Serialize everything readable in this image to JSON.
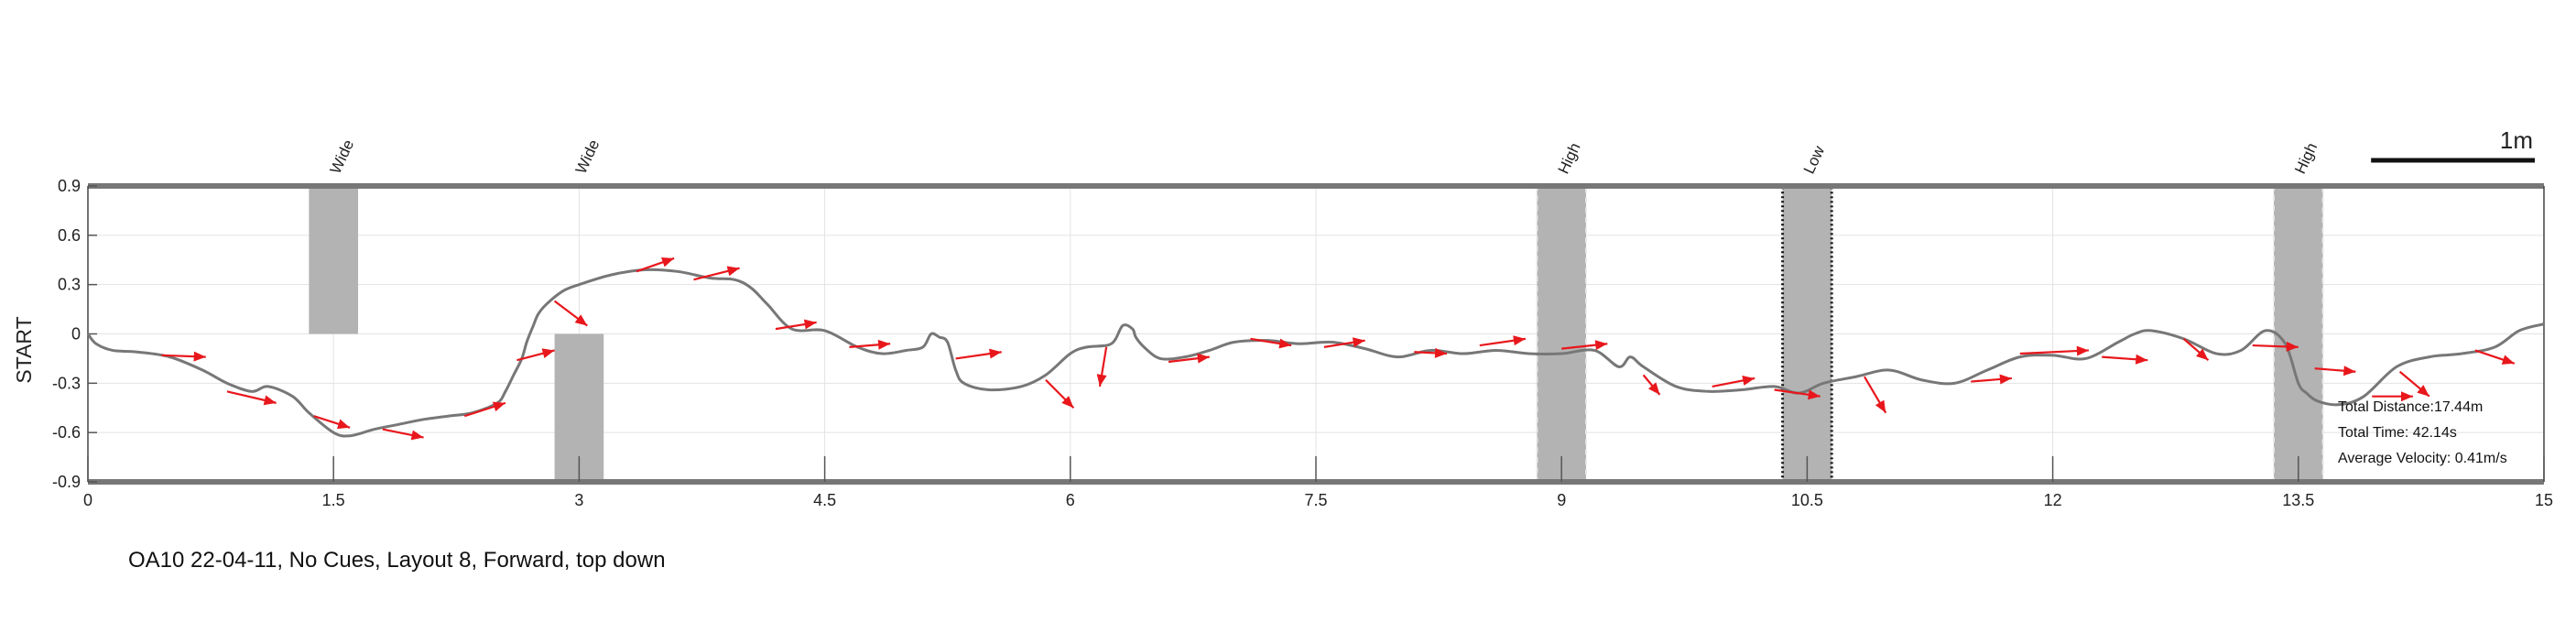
{
  "caption": "OA10 22-04-11, No Cues, Layout 8, Forward, top down",
  "chart_data": {
    "type": "line",
    "ylabel": "START",
    "xlim": [
      0,
      15
    ],
    "ylim": [
      -0.9,
      0.9
    ],
    "xticks": [
      0,
      1.5,
      3,
      4.5,
      6,
      7.5,
      9,
      10.5,
      12,
      13.5,
      15
    ],
    "xtick_labels": [
      "0",
      "1.5",
      "3",
      "4.5",
      "6",
      "7.5",
      "9",
      "10.5",
      "12",
      "13.5",
      "15"
    ],
    "yticks": [
      0.9,
      0.6,
      0.3,
      0,
      -0.3,
      -0.6,
      -0.9
    ],
    "ytick_labels": [
      "0.9",
      "0.6",
      "0.3",
      "0",
      "-0.3",
      "-0.6",
      "-0.9"
    ],
    "grid": true,
    "scale_bar": {
      "label": "1m",
      "length": 1
    },
    "obstacles": [
      {
        "label": "Wide",
        "x": [
          1.35,
          1.65
        ],
        "y": [
          0,
          0.9
        ],
        "style": "solid"
      },
      {
        "label": "Wide",
        "x": [
          2.85,
          3.15
        ],
        "y": [
          -0.9,
          0
        ],
        "style": "solid"
      },
      {
        "label": "High",
        "x": [
          8.85,
          9.15
        ],
        "y": [
          -0.9,
          0.9
        ],
        "style": "dashed"
      },
      {
        "label": "Low",
        "x": [
          10.35,
          10.65
        ],
        "y": [
          -0.9,
          0.9
        ],
        "style": "dotted"
      },
      {
        "label": "High",
        "x": [
          13.35,
          13.65
        ],
        "y": [
          -0.9,
          0.9
        ],
        "style": "dashed"
      }
    ],
    "path": {
      "x": [
        0,
        0.05,
        0.15,
        0.3,
        0.5,
        0.7,
        0.85,
        1.0,
        1.1,
        1.25,
        1.35,
        1.5,
        1.6,
        1.75,
        1.9,
        2.05,
        2.2,
        2.35,
        2.5,
        2.55,
        2.6,
        2.65,
        2.68,
        2.72,
        2.75,
        2.8,
        2.9,
        3.0,
        3.2,
        3.4,
        3.6,
        3.8,
        3.95,
        4.05,
        4.15,
        4.3,
        4.5,
        4.7,
        4.85,
        5.0,
        5.1,
        5.15,
        5.2,
        5.25,
        5.3,
        5.35,
        5.5,
        5.7,
        5.85,
        6.0,
        6.1,
        6.25,
        6.32,
        6.38,
        6.4,
        6.45,
        6.55,
        6.7,
        6.85,
        7.0,
        7.2,
        7.4,
        7.6,
        7.8,
        8.0,
        8.2,
        8.4,
        8.6,
        8.8,
        9.0,
        9.2,
        9.35,
        9.42,
        9.5,
        9.7,
        9.9,
        10.1,
        10.3,
        10.45,
        10.6,
        10.8,
        11.0,
        11.2,
        11.4,
        11.6,
        11.8,
        12.0,
        12.2,
        12.4,
        12.5,
        12.6,
        12.8,
        13.0,
        13.15,
        13.3,
        13.42,
        13.5,
        13.55,
        13.62,
        13.75,
        13.9,
        14.1,
        14.3,
        14.5,
        14.7,
        14.85,
        15.0
      ],
      "y": [
        0,
        -0.06,
        -0.1,
        -0.11,
        -0.14,
        -0.22,
        -0.3,
        -0.35,
        -0.32,
        -0.38,
        -0.48,
        -0.6,
        -0.62,
        -0.58,
        -0.55,
        -0.52,
        -0.5,
        -0.48,
        -0.42,
        -0.35,
        -0.25,
        -0.15,
        -0.05,
        0.05,
        0.12,
        0.18,
        0.26,
        0.3,
        0.36,
        0.39,
        0.38,
        0.34,
        0.33,
        0.28,
        0.18,
        0.03,
        0.02,
        -0.08,
        -0.12,
        -0.1,
        -0.08,
        0.0,
        -0.02,
        -0.05,
        -0.22,
        -0.3,
        -0.34,
        -0.32,
        -0.25,
        -0.12,
        -0.08,
        -0.06,
        0.05,
        0.03,
        -0.02,
        -0.08,
        -0.15,
        -0.14,
        -0.1,
        -0.05,
        -0.04,
        -0.06,
        -0.05,
        -0.09,
        -0.14,
        -0.1,
        -0.12,
        -0.1,
        -0.12,
        -0.12,
        -0.1,
        -0.2,
        -0.14,
        -0.2,
        -0.32,
        -0.35,
        -0.34,
        -0.32,
        -0.36,
        -0.3,
        -0.26,
        -0.22,
        -0.28,
        -0.3,
        -0.22,
        -0.14,
        -0.13,
        -0.15,
        -0.05,
        0.0,
        0.02,
        -0.03,
        -0.12,
        -0.1,
        0.02,
        -0.06,
        -0.3,
        -0.36,
        -0.41,
        -0.43,
        -0.38,
        -0.2,
        -0.14,
        -0.12,
        -0.08,
        0.02,
        0.06
      ]
    },
    "arrows": [
      [
        0.45,
        -0.13,
        0.72,
        -0.14
      ],
      [
        0.85,
        -0.35,
        1.15,
        -0.42
      ],
      [
        1.38,
        -0.5,
        1.6,
        -0.57
      ],
      [
        1.8,
        -0.58,
        2.05,
        -0.63
      ],
      [
        2.3,
        -0.5,
        2.55,
        -0.42
      ],
      [
        2.62,
        -0.16,
        2.85,
        -0.1
      ],
      [
        2.85,
        0.2,
        3.05,
        0.05
      ],
      [
        3.35,
        0.38,
        3.58,
        0.46
      ],
      [
        3.7,
        0.33,
        3.98,
        0.4
      ],
      [
        4.2,
        0.03,
        4.45,
        0.07
      ],
      [
        4.65,
        -0.08,
        4.9,
        -0.06
      ],
      [
        5.3,
        -0.15,
        5.58,
        -0.11
      ],
      [
        5.85,
        -0.28,
        6.02,
        -0.45
      ],
      [
        6.22,
        -0.08,
        6.18,
        -0.32
      ],
      [
        6.6,
        -0.17,
        6.85,
        -0.14
      ],
      [
        7.1,
        -0.03,
        7.35,
        -0.07
      ],
      [
        7.55,
        -0.08,
        7.8,
        -0.04
      ],
      [
        8.1,
        -0.11,
        8.3,
        -0.12
      ],
      [
        8.5,
        -0.07,
        8.78,
        -0.03
      ],
      [
        9.0,
        -0.09,
        9.28,
        -0.06
      ],
      [
        9.5,
        -0.25,
        9.6,
        -0.37
      ],
      [
        9.92,
        -0.32,
        10.18,
        -0.27
      ],
      [
        10.3,
        -0.34,
        10.58,
        -0.38
      ],
      [
        10.85,
        -0.26,
        10.98,
        -0.48
      ],
      [
        11.5,
        -0.29,
        11.75,
        -0.27
      ],
      [
        11.8,
        -0.12,
        12.22,
        -0.1
      ],
      [
        12.3,
        -0.14,
        12.58,
        -0.16
      ],
      [
        12.8,
        -0.03,
        12.95,
        -0.16
      ],
      [
        13.22,
        -0.07,
        13.5,
        -0.08
      ],
      [
        13.6,
        -0.21,
        13.85,
        -0.23
      ],
      [
        14.12,
        -0.23,
        14.3,
        -0.38
      ],
      [
        14.58,
        -0.1,
        14.82,
        -0.18
      ],
      [
        13.95,
        -0.38,
        14.2,
        -0.38
      ]
    ],
    "annotations": {
      "total_distance": "Total Distance:17.44m",
      "total_time": "Total Time: 42.14s",
      "average_velocity": "Average Velocity: 0.41m/s"
    }
  }
}
